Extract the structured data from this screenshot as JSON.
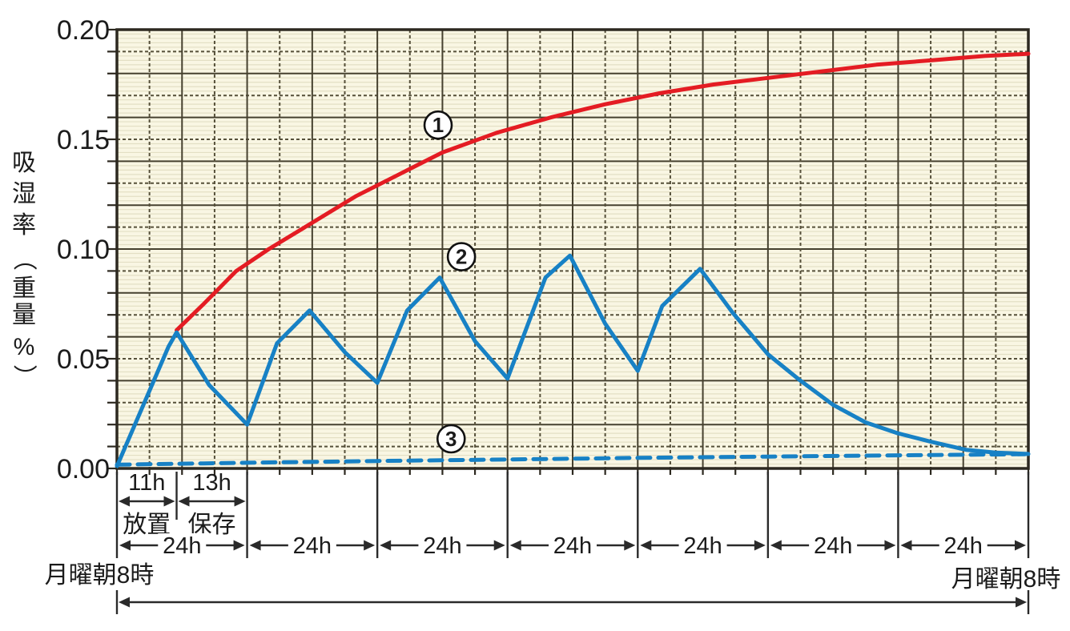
{
  "chart_data": {
    "type": "line",
    "title": "",
    "ylabel": "吸湿率（重量%）",
    "ylabel_chars": [
      "吸",
      "湿",
      "率",
      "（",
      "重",
      "量",
      "%",
      "）"
    ],
    "xlabel": "",
    "ylim": [
      0,
      0.2
    ],
    "xlim_hours": [
      0,
      168
    ],
    "grid": "on",
    "x_gridline_step_hours": 6,
    "y_gridline_step": 0.01,
    "y_fine_step": 0.002,
    "y_ticks": [
      {
        "label": "0.20",
        "value": 0.2
      },
      {
        "label": "0.15",
        "value": 0.15
      },
      {
        "label": "0.10",
        "value": 0.1
      },
      {
        "label": "0.05",
        "value": 0.05
      },
      {
        "label": "0.00",
        "value": 0.0
      }
    ],
    "series": [
      {
        "label": "①",
        "line_style": "solid",
        "color": "#e41c23",
        "marker": {
          "text": "1",
          "x_hour": 59.2,
          "value": 0.1565
        },
        "points_hour_value": [
          [
            11,
            0.063
          ],
          [
            16,
            0.075
          ],
          [
            22,
            0.09
          ],
          [
            28,
            0.1
          ],
          [
            36,
            0.112
          ],
          [
            44,
            0.124
          ],
          [
            52,
            0.134
          ],
          [
            60,
            0.144
          ],
          [
            70,
            0.153
          ],
          [
            80,
            0.16
          ],
          [
            90,
            0.166
          ],
          [
            100,
            0.171
          ],
          [
            110,
            0.175
          ],
          [
            120,
            0.178
          ],
          [
            130,
            0.181
          ],
          [
            140,
            0.184
          ],
          [
            150,
            0.186
          ],
          [
            160,
            0.188
          ],
          [
            168,
            0.189
          ]
        ]
      },
      {
        "label": "②",
        "line_style": "solid",
        "color": "#1781c5",
        "marker": {
          "text": "2",
          "x_hour": 63.5,
          "value": 0.0965
        },
        "points_hour_value": [
          [
            0,
            0.001
          ],
          [
            9.5,
            0.0555
          ],
          [
            11,
            0.062
          ],
          [
            17,
            0.038
          ],
          [
            24,
            0.02
          ],
          [
            29.5,
            0.057
          ],
          [
            35.5,
            0.072
          ],
          [
            42,
            0.053
          ],
          [
            48,
            0.039
          ],
          [
            53.5,
            0.072
          ],
          [
            59.5,
            0.087
          ],
          [
            66,
            0.058
          ],
          [
            72,
            0.041
          ],
          [
            79,
            0.087
          ],
          [
            83.5,
            0.097
          ],
          [
            90,
            0.066
          ],
          [
            96,
            0.0445
          ],
          [
            100.5,
            0.074
          ],
          [
            107.5,
            0.091
          ],
          [
            113.5,
            0.071
          ],
          [
            120,
            0.052
          ],
          [
            126,
            0.04
          ],
          [
            132,
            0.029
          ],
          [
            138,
            0.021
          ],
          [
            144,
            0.016
          ],
          [
            150,
            0.0122
          ],
          [
            156.5,
            0.0085
          ],
          [
            162,
            0.0072
          ],
          [
            168,
            0.0066
          ]
        ]
      },
      {
        "label": "③",
        "line_style": "dashed",
        "color": "#1781c5",
        "marker": {
          "text": "3",
          "x_hour": 61.6,
          "value": 0.0135
        },
        "points_hour_value": [
          [
            0,
            0.0017
          ],
          [
            24,
            0.0026
          ],
          [
            48,
            0.0034
          ],
          [
            72,
            0.0041
          ],
          [
            96,
            0.0048
          ],
          [
            120,
            0.0054
          ],
          [
            144,
            0.006
          ],
          [
            168,
            0.0065
          ]
        ]
      }
    ]
  },
  "annotations": {
    "week_start_label": "月曜朝8時",
    "week_end_label": "月曜朝8時",
    "first_day_intervals": [
      {
        "label": "11h",
        "name": "放置",
        "from_hour": 0,
        "to_hour": 11
      },
      {
        "label": "13h",
        "name": "保存",
        "from_hour": 11,
        "to_hour": 24
      }
    ],
    "day_intervals": [
      {
        "label": "24h",
        "from_hour": 0,
        "to_hour": 24
      },
      {
        "label": "24h",
        "from_hour": 24,
        "to_hour": 48
      },
      {
        "label": "24h",
        "from_hour": 48,
        "to_hour": 72
      },
      {
        "label": "24h",
        "from_hour": 72,
        "to_hour": 96
      },
      {
        "label": "24h",
        "from_hour": 96,
        "to_hour": 120
      },
      {
        "label": "24h",
        "from_hour": 120,
        "to_hour": 144
      },
      {
        "label": "24h",
        "from_hour": 144,
        "to_hour": 168
      }
    ],
    "week_span_hours": 168
  },
  "colors": {
    "plot_bg": "#f9f6e3",
    "grid_fine": "#e3dfc4",
    "grid_major": "#46412f",
    "grid_dashed": "#56503a",
    "border": "#2d2920",
    "annotation": "#2a2a2a",
    "text": "#1b1b1b",
    "series1": "#e41c23",
    "series23": "#1781c5"
  }
}
